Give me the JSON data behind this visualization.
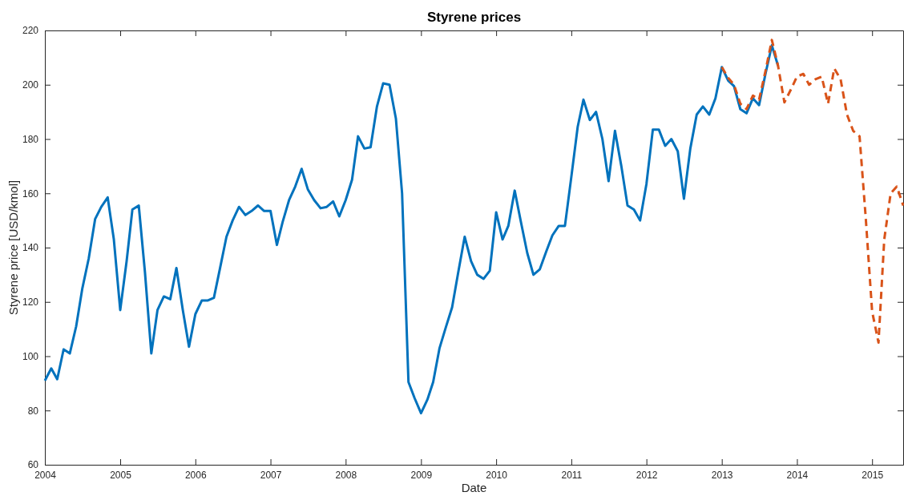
{
  "chart_data": {
    "type": "line",
    "title": "Styrene prices",
    "xlabel": "Date",
    "ylabel": "Styrene price [USD/kmol]",
    "xlim": [
      "2004-01",
      "2015-06"
    ],
    "xticks": [
      "2004",
      "2005",
      "2006",
      "2007",
      "2008",
      "2009",
      "2010",
      "2011",
      "2012",
      "2013",
      "2014",
      "2015"
    ],
    "ylim": [
      60,
      220
    ],
    "yticks": [
      60,
      80,
      100,
      120,
      140,
      160,
      180,
      200,
      220
    ],
    "series": [
      {
        "color": "#0072bd",
        "line_style": "solid",
        "x": [
          "2004-01",
          "2004-02",
          "2004-03",
          "2004-04",
          "2004-05",
          "2004-06",
          "2004-07",
          "2004-08",
          "2004-09",
          "2004-10",
          "2004-11",
          "2004-12",
          "2005-01",
          "2005-02",
          "2005-03",
          "2005-04",
          "2005-05",
          "2005-06",
          "2005-07",
          "2005-08",
          "2005-09",
          "2005-10",
          "2005-11",
          "2005-12",
          "2006-01",
          "2006-02",
          "2006-03",
          "2006-04",
          "2006-05",
          "2006-06",
          "2006-07",
          "2006-08",
          "2006-09",
          "2006-10",
          "2006-11",
          "2006-12",
          "2007-01",
          "2007-02",
          "2007-03",
          "2007-04",
          "2007-05",
          "2007-06",
          "2007-07",
          "2007-08",
          "2007-09",
          "2007-10",
          "2007-11",
          "2007-12",
          "2008-01",
          "2008-02",
          "2008-03",
          "2008-04",
          "2008-05",
          "2008-06",
          "2008-07",
          "2008-08",
          "2008-09",
          "2008-10",
          "2008-11",
          "2008-12",
          "2009-01",
          "2009-02",
          "2009-03",
          "2009-04",
          "2009-05",
          "2009-06",
          "2009-07",
          "2009-08",
          "2009-09",
          "2009-10",
          "2009-11",
          "2009-12",
          "2010-01",
          "2010-02",
          "2010-03",
          "2010-04",
          "2010-05",
          "2010-06",
          "2010-07",
          "2010-08",
          "2010-09",
          "2010-10",
          "2010-11",
          "2010-12",
          "2011-01",
          "2011-02",
          "2011-03",
          "2011-04",
          "2011-05",
          "2011-06",
          "2011-07",
          "2011-08",
          "2011-09",
          "2011-10",
          "2011-11",
          "2011-12",
          "2012-01",
          "2012-02",
          "2012-03",
          "2012-04",
          "2012-05",
          "2012-06",
          "2012-07",
          "2012-08",
          "2012-09",
          "2012-10",
          "2012-11",
          "2012-12",
          "2013-01",
          "2013-02",
          "2013-03",
          "2013-04",
          "2013-05",
          "2013-06",
          "2013-07",
          "2013-08",
          "2013-09",
          "2013-10"
        ],
        "values": [
          91,
          95.5,
          91.5,
          102.5,
          101,
          111,
          125,
          136,
          150.5,
          155,
          158.5,
          143,
          117,
          135,
          154,
          155.5,
          131,
          101,
          117,
          122,
          121,
          132.5,
          117,
          103.5,
          115.5,
          120.5,
          120.5,
          121.5,
          132.5,
          144,
          150,
          155,
          152,
          153.5,
          155.5,
          153.5,
          153.5,
          141,
          149.5,
          157.5,
          162.5,
          169,
          161.5,
          157.5,
          154.5,
          155,
          157,
          151.5,
          157.5,
          165,
          181,
          176.5,
          177,
          192,
          200.5,
          200,
          187.5,
          160,
          90.5,
          84.5,
          79,
          84,
          90.5,
          103,
          110.5,
          118,
          131,
          144,
          135,
          130,
          128.5,
          131.5,
          153,
          143,
          148,
          161,
          149.5,
          138,
          130,
          132,
          138.5,
          144.5,
          148,
          148,
          166,
          184.5,
          194.5,
          187,
          190,
          180,
          164.5,
          183,
          170,
          155.5,
          154,
          150,
          163.5,
          183.5,
          183.5,
          177.5,
          180,
          175.5,
          158,
          176.5,
          189,
          192,
          189,
          195,
          206.5,
          201.5,
          199.5,
          191,
          189.5,
          195,
          192.5,
          204,
          214.5,
          207
        ]
      },
      {
        "color": "#d95319",
        "line_style": "dashed",
        "x": [
          "2013-01",
          "2013-02",
          "2013-03",
          "2013-04",
          "2013-05",
          "2013-06",
          "2013-07",
          "2013-08",
          "2013-09",
          "2013-10",
          "2013-11",
          "2013-12",
          "2014-01",
          "2014-02",
          "2014-03",
          "2014-04",
          "2014-05",
          "2014-06",
          "2014-07",
          "2014-08",
          "2014-09",
          "2014-10",
          "2014-11",
          "2014-12",
          "2015-01",
          "2015-02",
          "2015-03",
          "2015-04",
          "2015-05",
          "2015-06"
        ],
        "values": [
          206.5,
          202.5,
          200,
          193,
          191,
          196,
          194.5,
          205,
          216.5,
          207,
          193.5,
          198,
          203,
          204,
          200,
          202,
          203,
          193,
          206,
          202,
          189,
          183,
          181,
          151,
          116.5,
          105,
          143,
          160,
          162.5,
          155.5
        ]
      }
    ]
  }
}
